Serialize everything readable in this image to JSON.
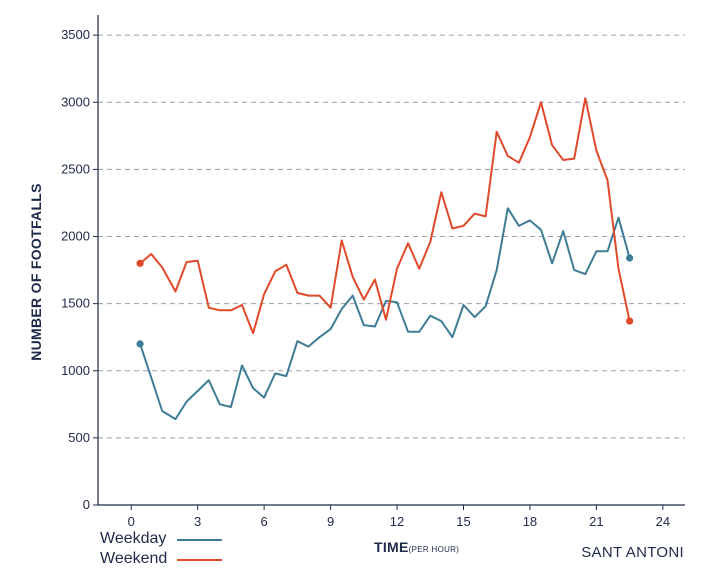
{
  "chart_data": {
    "type": "line",
    "title": "",
    "xlabel": "TIME",
    "xlabel_suffix": "(PER HOUR)",
    "ylabel": "NUMBER OF FOOTFALLS",
    "location": "SANT ANTONI",
    "xlim": [
      -1.5,
      25
    ],
    "ylim": [
      0,
      3650
    ],
    "x_ticks": [
      0,
      3,
      6,
      9,
      12,
      15,
      18,
      21,
      24
    ],
    "y_ticks": [
      0,
      500,
      1000,
      1500,
      2000,
      2500,
      3000,
      3500
    ],
    "grid": "horizontal-dashed",
    "legend_position": "bottom-left",
    "colors": {
      "axis": "#1f2a4a",
      "grid": "#9aa0ad"
    },
    "series": [
      {
        "name": "Weekday",
        "color": "#3f7d96",
        "x": [
          0.4,
          0.9,
          1.4,
          2.0,
          2.5,
          3.0,
          3.5,
          4.0,
          4.5,
          5.0,
          5.5,
          6.0,
          6.5,
          7.0,
          7.5,
          8.0,
          8.5,
          9.0,
          9.5,
          10.0,
          10.5,
          11.0,
          11.5,
          12.0,
          12.5,
          13.0,
          13.5,
          14.0,
          14.5,
          15.0,
          15.5,
          16.0,
          16.5,
          17.0,
          17.5,
          18.0,
          18.5,
          19.0,
          19.5,
          20.0,
          20.5,
          21.0,
          21.5,
          22.0,
          22.5,
          23.0,
          23.6
        ],
        "values": [
          1200,
          950,
          700,
          640,
          770,
          850,
          930,
          750,
          730,
          1040,
          870,
          800,
          980,
          960,
          1220,
          1180,
          1250,
          1310,
          1460,
          1560,
          1340,
          1330,
          1520,
          1510,
          1290,
          1290,
          1410,
          1370,
          1250,
          1490,
          1400,
          1480,
          1750,
          2210,
          2080,
          2120,
          2050,
          1800,
          2040,
          1750,
          1720,
          1890,
          1890,
          2140,
          1840,
          null,
          null
        ],
        "end_markers": true
      },
      {
        "name": "Weekend",
        "color": "#e04a2b",
        "x": [
          0.4,
          0.9,
          1.4,
          2.0,
          2.5,
          3.0,
          3.5,
          4.0,
          4.5,
          5.0,
          5.5,
          6.0,
          6.5,
          7.0,
          7.5,
          8.0,
          8.5,
          9.0,
          9.5,
          10.0,
          10.5,
          11.0,
          11.5,
          12.0,
          12.5,
          13.0,
          13.5,
          14.0,
          14.5,
          15.0,
          15.5,
          16.0,
          16.5,
          17.0,
          17.5,
          18.0,
          18.5,
          19.0,
          19.5,
          20.0,
          20.5,
          21.0,
          21.5,
          22.0,
          22.5,
          23.0,
          23.6
        ],
        "values": [
          1800,
          1870,
          1770,
          1590,
          1810,
          1820,
          1470,
          1450,
          1450,
          1490,
          1280,
          1570,
          1740,
          1790,
          1580,
          1560,
          1560,
          1470,
          1970,
          1700,
          1530,
          1680,
          1380,
          1760,
          1950,
          1760,
          1960,
          2330,
          2060,
          2080,
          2170,
          2150,
          2780,
          2600,
          2550,
          2740,
          3000,
          2680,
          2570,
          2580,
          3030,
          2640,
          2420,
          1760,
          1370,
          null,
          null
        ],
        "end_markers": true
      }
    ]
  }
}
